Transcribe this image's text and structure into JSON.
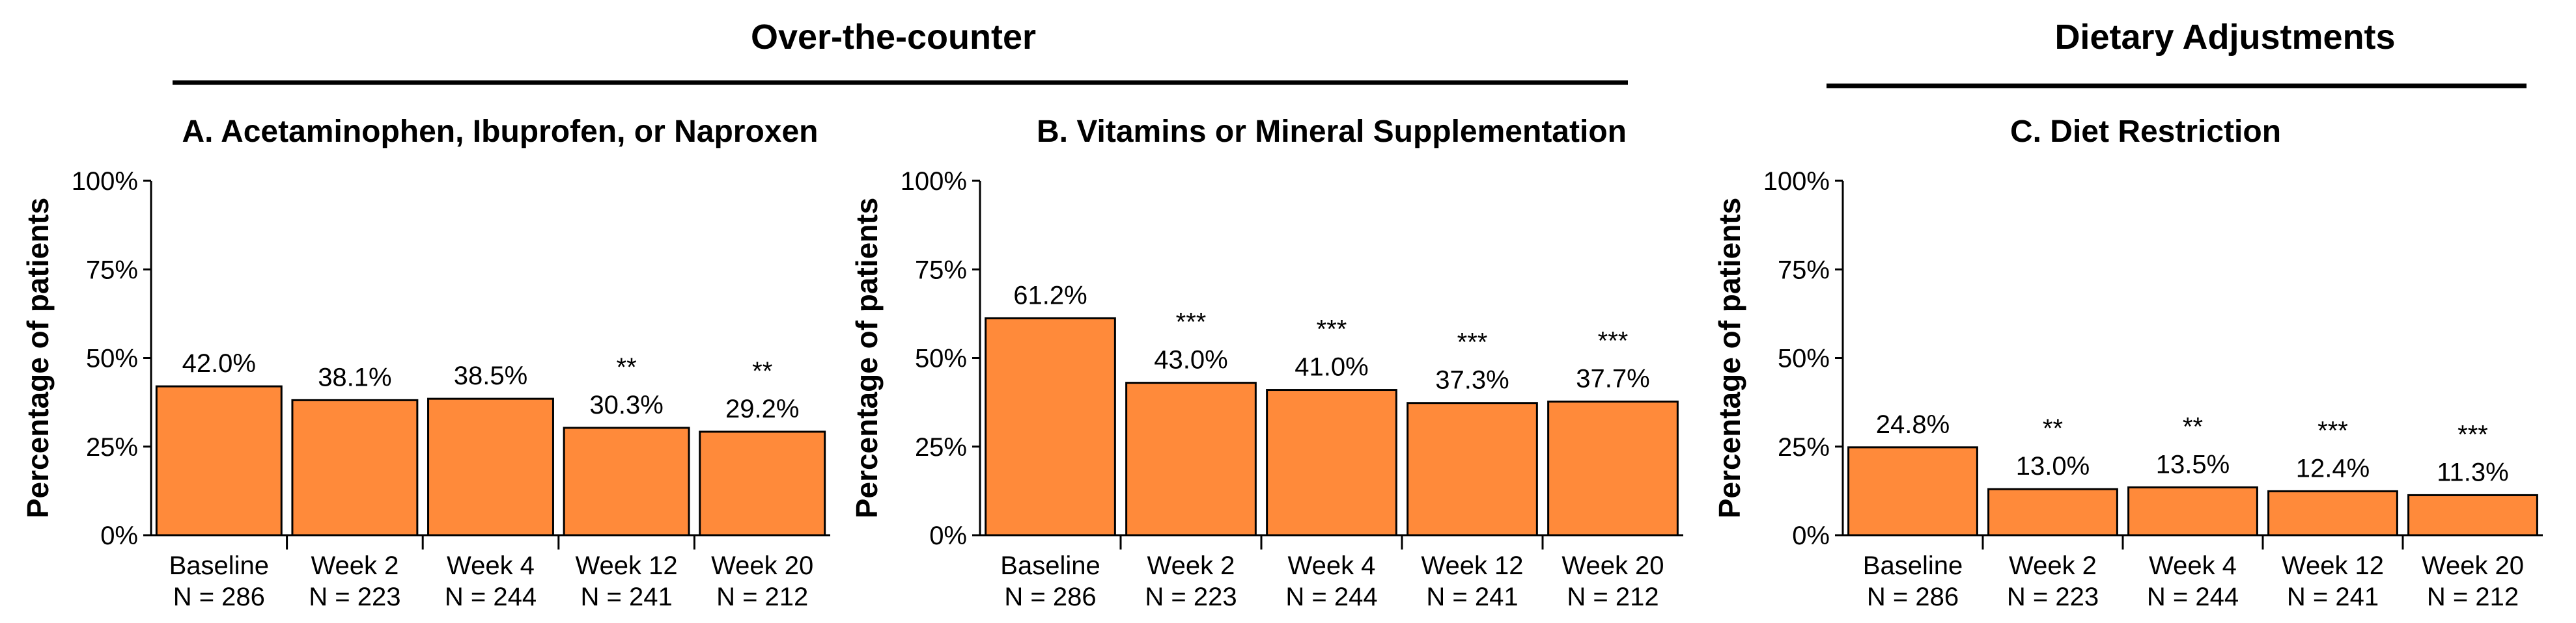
{
  "groups": [
    {
      "title": "Over-the-counter",
      "panels": [
        0,
        1
      ]
    },
    {
      "title": "Dietary Adjustments",
      "panels": [
        2
      ]
    }
  ],
  "colors": {
    "bar": "#FF8A3A",
    "bar_edge": "#000000"
  },
  "chart_data": [
    {
      "type": "bar",
      "title": "A. Acetaminophen, Ibuprofen, or Naproxen",
      "ylabel": "Percentage of patients",
      "ylim": [
        0,
        100
      ],
      "yticks": [
        "0%",
        "25%",
        "50%",
        "75%",
        "100%"
      ],
      "categories": [
        [
          "Baseline",
          "N = 286"
        ],
        [
          "Week 2",
          "N = 223"
        ],
        [
          "Week 4",
          "N = 244"
        ],
        [
          "Week 12",
          "N = 241"
        ],
        [
          "Week 20",
          "N = 212"
        ]
      ],
      "values": [
        42.0,
        38.1,
        38.5,
        30.3,
        29.2
      ],
      "value_labels": [
        "42.0%",
        "38.1%",
        "38.5%",
        "30.3%",
        "29.2%"
      ],
      "significance": [
        "",
        "",
        "",
        "**",
        "**"
      ]
    },
    {
      "type": "bar",
      "title": "B. Vitamins or Mineral Supplementation",
      "ylabel": "Percentage of patients",
      "ylim": [
        0,
        100
      ],
      "yticks": [
        "0%",
        "25%",
        "50%",
        "75%",
        "100%"
      ],
      "categories": [
        [
          "Baseline",
          "N = 286"
        ],
        [
          "Week 2",
          "N = 223"
        ],
        [
          "Week 4",
          "N = 244"
        ],
        [
          "Week 12",
          "N = 241"
        ],
        [
          "Week 20",
          "N = 212"
        ]
      ],
      "values": [
        61.2,
        43.0,
        41.0,
        37.3,
        37.7
      ],
      "value_labels": [
        "61.2%",
        "43.0%",
        "41.0%",
        "37.3%",
        "37.7%"
      ],
      "significance": [
        "",
        "***",
        "***",
        "***",
        "***"
      ]
    },
    {
      "type": "bar",
      "title": "C. Diet Restriction",
      "ylabel": "Percentage of patients",
      "ylim": [
        0,
        100
      ],
      "yticks": [
        "0%",
        "25%",
        "50%",
        "75%",
        "100%"
      ],
      "categories": [
        [
          "Baseline",
          "N = 286"
        ],
        [
          "Week 2",
          "N = 223"
        ],
        [
          "Week 4",
          "N = 244"
        ],
        [
          "Week 12",
          "N = 241"
        ],
        [
          "Week 20",
          "N = 212"
        ]
      ],
      "values": [
        24.8,
        13.0,
        13.5,
        12.4,
        11.3
      ],
      "value_labels": [
        "24.8%",
        "13.0%",
        "13.5%",
        "12.4%",
        "11.3%"
      ],
      "significance": [
        "",
        "**",
        "**",
        "***",
        "***"
      ]
    }
  ]
}
